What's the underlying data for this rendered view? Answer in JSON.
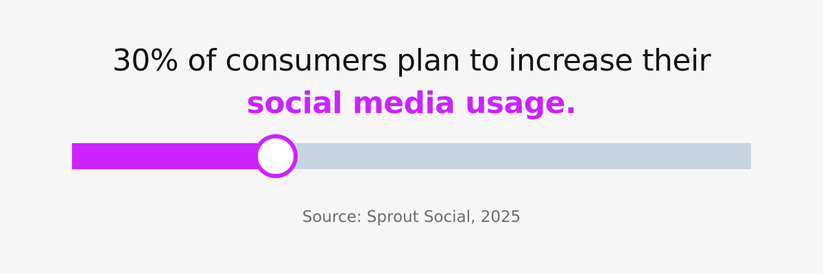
{
  "headline": {
    "line1": "30% of consumers plan to increase their",
    "line2": "social media usage."
  },
  "progress": {
    "percent": 30
  },
  "source": "Source: Sprout Social, 2025",
  "colors": {
    "background": "#f6f6f6",
    "headline_text": "#141414",
    "accent": "#cc22ff",
    "track": "#c7d3e0",
    "source_text": "#6d6d6d"
  }
}
